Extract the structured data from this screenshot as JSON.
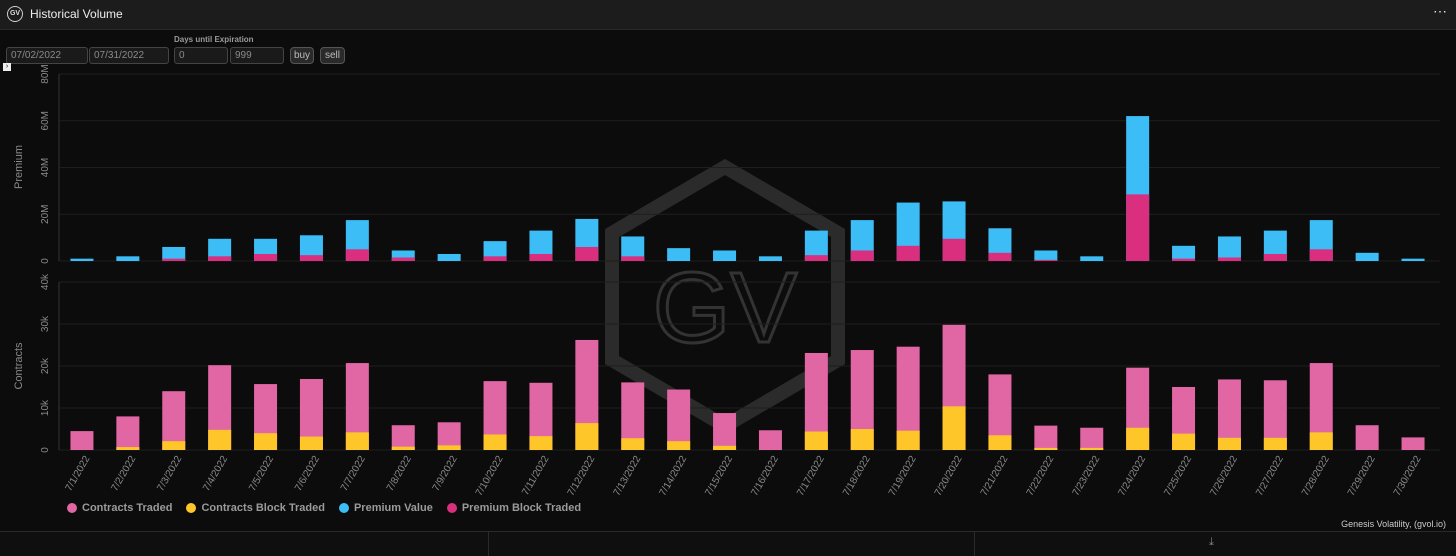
{
  "header": {
    "logo": "GV",
    "title": "Historical Volume",
    "more_icon": "⋯"
  },
  "controls": {
    "start_date": "07/02/2022",
    "end_date": "07/31/2022",
    "dte_label": "Days until Expiration",
    "dte_min": "0",
    "dte_max": "999",
    "buy_label": "buy",
    "sell_label": "sell"
  },
  "watermark": "GV",
  "colors": {
    "contracts_traded": "#e066a4",
    "contracts_block": "#ffc629",
    "premium_value": "#3cbdf5",
    "premium_block": "#d92f7e",
    "background": "#0c0c0c"
  },
  "chart_data": [
    {
      "type": "bar",
      "stacked": false,
      "ylabel": "Premium",
      "ylim": [
        0,
        80000000
      ],
      "yticks": [
        "0",
        "20M",
        "40M",
        "60M",
        "80M"
      ],
      "categories": [
        "7/1/2022",
        "7/2/2022",
        "7/3/2022",
        "7/4/2022",
        "7/5/2022",
        "7/6/2022",
        "7/7/2022",
        "7/8/2022",
        "7/9/2022",
        "7/10/2022",
        "7/11/2022",
        "7/12/2022",
        "7/13/2022",
        "7/14/2022",
        "7/15/2022",
        "7/16/2022",
        "7/17/2022",
        "7/18/2022",
        "7/19/2022",
        "7/20/2022",
        "7/21/2022",
        "7/22/2022",
        "7/23/2022",
        "7/24/2022",
        "7/25/2022",
        "7/26/2022",
        "7/27/2022",
        "7/28/2022",
        "7/29/2022",
        "7/30/2022"
      ],
      "series": [
        {
          "name": "Premium Value",
          "values": [
            1000000,
            2000000,
            6000000,
            9500000,
            9500000,
            11000000,
            17500000,
            4500000,
            3000000,
            8500000,
            13000000,
            18000000,
            10500000,
            5500000,
            4500000,
            2000000,
            13000000,
            17500000,
            25000000,
            25500000,
            14000000,
            4500000,
            2000000,
            62000000,
            6500000,
            10500000,
            13000000,
            17500000,
            3500000,
            1000000
          ]
        },
        {
          "name": "Premium Block Traded",
          "values": [
            0,
            0,
            1000000,
            2000000,
            3000000,
            2500000,
            5000000,
            1500000,
            0,
            2000000,
            3000000,
            6000000,
            2000000,
            0,
            0,
            0,
            2500000,
            4500000,
            6500000,
            9500000,
            3500000,
            500000,
            0,
            28500000,
            1000000,
            1500000,
            3000000,
            5000000,
            0,
            0
          ]
        }
      ]
    },
    {
      "type": "bar",
      "stacked": false,
      "ylabel": "Contracts",
      "ylim": [
        0,
        40000
      ],
      "yticks": [
        "0",
        "10k",
        "20k",
        "30k",
        "40k"
      ],
      "categories": [
        "7/1/2022",
        "7/2/2022",
        "7/3/2022",
        "7/4/2022",
        "7/5/2022",
        "7/6/2022",
        "7/7/2022",
        "7/8/2022",
        "7/9/2022",
        "7/10/2022",
        "7/11/2022",
        "7/12/2022",
        "7/13/2022",
        "7/14/2022",
        "7/15/2022",
        "7/16/2022",
        "7/17/2022",
        "7/18/2022",
        "7/19/2022",
        "7/20/2022",
        "7/21/2022",
        "7/22/2022",
        "7/23/2022",
        "7/24/2022",
        "7/25/2022",
        "7/26/2022",
        "7/27/2022",
        "7/28/2022",
        "7/29/2022",
        "7/30/2022"
      ],
      "series": [
        {
          "name": "Contracts Traded",
          "values": [
            4500,
            8000,
            14000,
            20200,
            15700,
            16900,
            20700,
            5900,
            6600,
            16400,
            16000,
            26200,
            16100,
            14400,
            8800,
            4700,
            23100,
            23800,
            24600,
            29800,
            18000,
            5800,
            5300,
            19600,
            15000,
            16800,
            16600,
            20700,
            5900,
            3000
          ]
        },
        {
          "name": "Contracts Block Traded",
          "values": [
            0,
            700,
            2100,
            4800,
            4000,
            3200,
            4200,
            800,
            1100,
            3700,
            3300,
            6400,
            2800,
            2100,
            1000,
            0,
            4400,
            5000,
            4600,
            10400,
            3500,
            500,
            500,
            5300,
            3900,
            2900,
            2900,
            4200,
            0,
            0
          ]
        }
      ]
    }
  ],
  "legend": [
    {
      "label": "Contracts Traded",
      "color": "#e066a4"
    },
    {
      "label": "Contracts Block Traded",
      "color": "#ffc629"
    },
    {
      "label": "Premium Value",
      "color": "#3cbdf5"
    },
    {
      "label": "Premium Block Traded",
      "color": "#d92f7e"
    }
  ],
  "credit": "Genesis Volatility, (gvol.io)",
  "footer": {
    "download_icon": "⤓"
  }
}
